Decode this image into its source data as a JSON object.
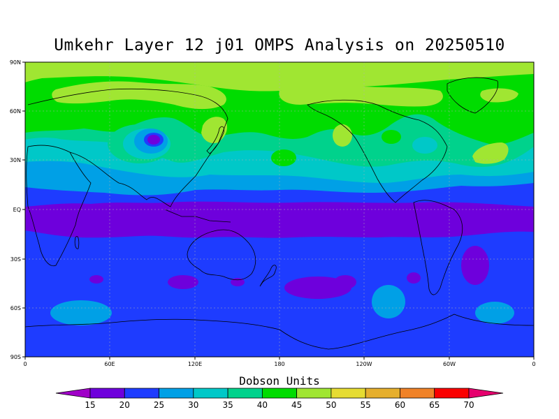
{
  "title": "Umkehr Layer 12 j01 OMPS Analysis on 20250510",
  "colorbar": {
    "title": "Dobson Units",
    "levels": [
      "15",
      "20",
      "25",
      "30",
      "35",
      "40",
      "45",
      "50",
      "55",
      "60",
      "65",
      "70"
    ],
    "colors": [
      "#a000c8",
      "#6e00dc",
      "#1e3cff",
      "#00a0e6",
      "#00c8c8",
      "#00d28c",
      "#00dc00",
      "#a0e632",
      "#e6dc32",
      "#e6af2d",
      "#f08228",
      "#fa0000",
      "#e6006e"
    ]
  },
  "axes": {
    "lat_labels": [
      "90N",
      "60N",
      "30N",
      "EQ",
      "30S",
      "60S",
      "90S"
    ],
    "lon_labels": [
      "0",
      "60E",
      "120E",
      "180",
      "120W",
      "60W",
      "0"
    ]
  },
  "map_data": {
    "type": "contour_map",
    "variable": "ozone (Umkehr layer 12)",
    "units": "Dobson Units",
    "lat_range": [
      -90,
      90
    ],
    "lon_range": [
      0,
      360
    ],
    "contour_levels": [
      15,
      20,
      25,
      30,
      35,
      40,
      45,
      50,
      55,
      60,
      65,
      70
    ]
  }
}
